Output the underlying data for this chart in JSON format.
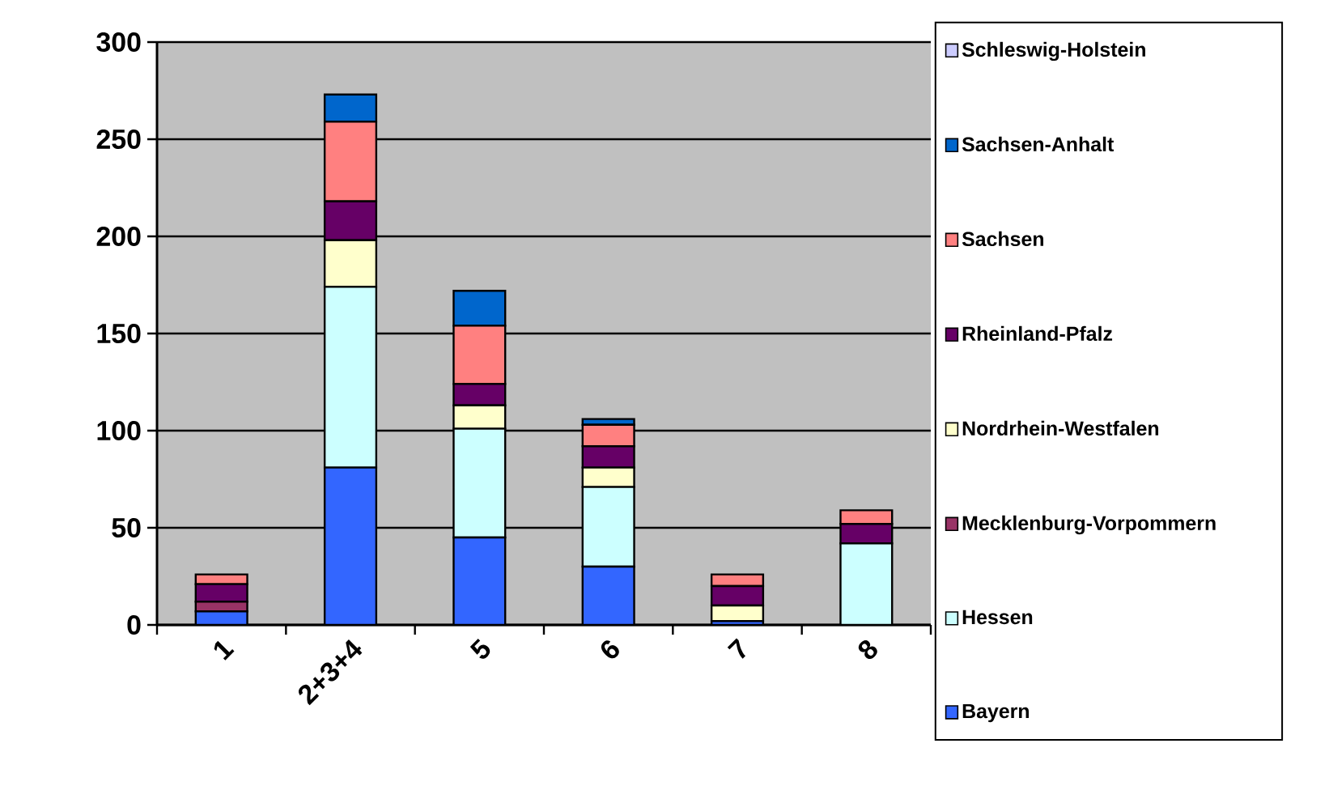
{
  "chart_data": {
    "type": "bar",
    "stacked": true,
    "categories": [
      "1",
      "2+3+4",
      "5",
      "6",
      "7",
      "8"
    ],
    "series": [
      {
        "name": "Bayern",
        "color": "#3366ff",
        "values": [
          7,
          81,
          45,
          30,
          2,
          0
        ]
      },
      {
        "name": "Hessen",
        "color": "#ccffff",
        "values": [
          0,
          93,
          56,
          41,
          0,
          42
        ]
      },
      {
        "name": "Mecklenburg-Vorpommern",
        "color": "#993366",
        "values": [
          5,
          0,
          0,
          0,
          0,
          0
        ]
      },
      {
        "name": "Nordrhein-Westfalen",
        "color": "#ffffcc",
        "values": [
          0,
          24,
          12,
          10,
          8,
          0
        ]
      },
      {
        "name": "Rheinland-Pfalz",
        "color": "#660066",
        "values": [
          9,
          20,
          11,
          11,
          10,
          10
        ]
      },
      {
        "name": "Sachsen",
        "color": "#ff8080",
        "values": [
          5,
          41,
          30,
          11,
          6,
          7
        ]
      },
      {
        "name": "Sachsen-Anhalt",
        "color": "#0066cc",
        "values": [
          0,
          14,
          18,
          3,
          0,
          0
        ]
      },
      {
        "name": "Schleswig-Holstein",
        "color": "#ccccff",
        "values": [
          0,
          0,
          0,
          0,
          0,
          0
        ]
      }
    ],
    "ylim": [
      0,
      300
    ],
    "yticks": [
      0,
      50,
      100,
      150,
      200,
      250,
      300
    ],
    "grid": "y",
    "legend": "right"
  }
}
